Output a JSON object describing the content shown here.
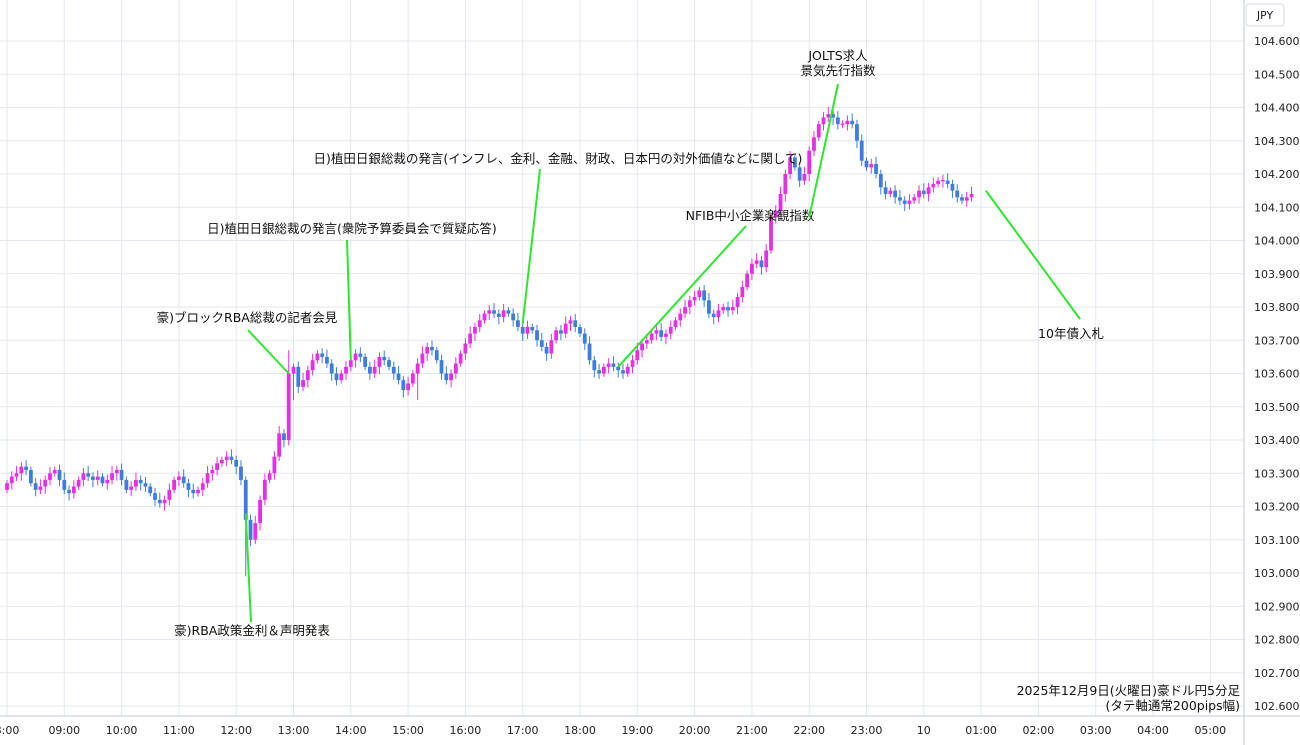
{
  "chart_data": {
    "type": "candlestick",
    "currency_label": "JPY",
    "caption_line1": "2025年12月9日(火曜日)豪ドル円5分足",
    "caption_line2": "(タテ軸通常200pips幅)",
    "ylim": [
      102.6,
      104.65
    ],
    "y_ticks": [
      "104.600",
      "104.500",
      "104.400",
      "104.300",
      "104.200",
      "104.100",
      "104.000",
      "103.900",
      "103.800",
      "103.700",
      "103.600",
      "103.500",
      "103.400",
      "103.300",
      "103.200",
      "103.100",
      "103.000",
      "102.900",
      "102.800",
      "102.700",
      "102.600"
    ],
    "x_ticks": [
      "8:00",
      "09:00",
      "10:00",
      "11:00",
      "12:00",
      "13:00",
      "14:00",
      "15:00",
      "16:00",
      "17:00",
      "18:00",
      "19:00",
      "20:00",
      "21:00",
      "22:00",
      "23:00",
      "10",
      "01:00",
      "02:00",
      "03:00",
      "04:00",
      "05:00"
    ],
    "x_start_hour": 8,
    "candle_minutes": 5,
    "colors": {
      "up": "#e62ee6",
      "down": "#3d7ddb",
      "annotation_line": "#2ee62e",
      "grid": "#e3e8ee"
    },
    "close": [
      103.27,
      103.29,
      103.3,
      103.32,
      103.31,
      103.27,
      103.25,
      103.26,
      103.28,
      103.3,
      103.31,
      103.28,
      103.25,
      103.24,
      103.26,
      103.28,
      103.3,
      103.29,
      103.28,
      103.29,
      103.27,
      103.28,
      103.3,
      103.31,
      103.28,
      103.25,
      103.26,
      103.28,
      103.27,
      103.26,
      103.24,
      103.22,
      103.21,
      103.22,
      103.25,
      103.28,
      103.29,
      103.27,
      103.25,
      103.24,
      103.25,
      103.27,
      103.3,
      103.31,
      103.33,
      103.34,
      103.35,
      103.34,
      103.32,
      103.28,
      103.16,
      103.1,
      103.15,
      103.22,
      103.28,
      103.3,
      103.35,
      103.42,
      103.4,
      103.6,
      103.62,
      103.56,
      103.58,
      103.61,
      103.64,
      103.66,
      103.65,
      103.63,
      103.6,
      103.58,
      103.6,
      103.62,
      103.64,
      103.66,
      103.65,
      103.62,
      103.6,
      103.62,
      103.65,
      103.64,
      103.62,
      103.6,
      103.58,
      103.55,
      103.57,
      103.6,
      103.63,
      103.66,
      103.68,
      103.67,
      103.64,
      103.6,
      103.58,
      103.6,
      103.63,
      103.66,
      103.69,
      103.72,
      103.74,
      103.76,
      103.78,
      103.79,
      103.78,
      103.77,
      103.79,
      103.78,
      103.76,
      103.74,
      103.72,
      103.74,
      103.73,
      103.7,
      103.68,
      103.66,
      103.7,
      103.73,
      103.72,
      103.75,
      103.76,
      103.74,
      103.72,
      103.69,
      103.64,
      103.61,
      103.6,
      103.62,
      103.63,
      103.62,
      103.61,
      103.6,
      103.62,
      103.64,
      103.67,
      103.69,
      103.7,
      103.72,
      103.73,
      103.71,
      103.72,
      103.74,
      103.76,
      103.78,
      103.8,
      103.82,
      103.83,
      103.85,
      103.82,
      103.78,
      103.77,
      103.79,
      103.8,
      103.79,
      103.8,
      103.83,
      103.86,
      103.9,
      103.93,
      103.94,
      103.92,
      103.97,
      104.07,
      104.09,
      104.14,
      104.2,
      104.25,
      104.22,
      104.18,
      104.2,
      104.27,
      104.31,
      104.35,
      104.37,
      104.38,
      104.37,
      104.35,
      104.35,
      104.36,
      104.35,
      104.3,
      104.24,
      104.22,
      104.23,
      104.2,
      104.16,
      104.14,
      104.15,
      104.13,
      104.12,
      104.11,
      104.12,
      104.13,
      104.15,
      104.14,
      104.16,
      104.17,
      104.18,
      104.18,
      104.17,
      104.15,
      104.13,
      104.12,
      104.13,
      104.14
    ],
    "annotations": [
      {
        "text": "豪)RBA政策金利＆声明発表",
        "candle": 50,
        "price": 103.18
      },
      {
        "text": "豪)ブロックRBA総裁の記者会見",
        "candle": 59,
        "price": 103.6
      },
      {
        "text": "日)植田日銀総裁の発言(衆院予算委員会で質疑応答)",
        "candle": 72,
        "price": 103.64
      },
      {
        "text": "日)植田日銀総裁の発言(インフレ、金利、金融、財政、日本円の対外価値などに関して)",
        "candle": 108,
        "price": 103.75
      },
      {
        "text": "NFIB中小企業楽観指数",
        "candle": 128,
        "price": 103.62
      },
      {
        "text": "JOLTS求人",
        "candle": 168,
        "price": 104.07
      },
      {
        "text": "景気先行指数",
        "candle": 168,
        "price": 104.07
      },
      {
        "text": "10年債入札",
        "candle": 205,
        "price": 104.15
      }
    ]
  }
}
